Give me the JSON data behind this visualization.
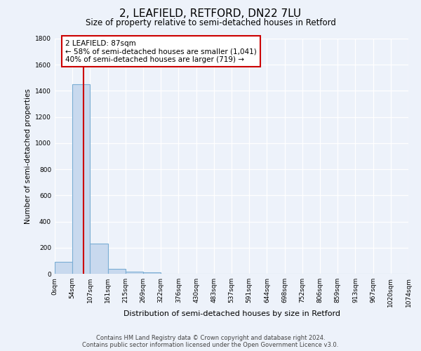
{
  "title": "2, LEAFIELD, RETFORD, DN22 7LU",
  "subtitle": "Size of property relative to semi-detached houses in Retford",
  "xlabel": "Distribution of semi-detached houses by size in Retford",
  "ylabel": "Number of semi-detached properties",
  "bar_values": [
    90,
    1450,
    230,
    40,
    15,
    10,
    0,
    0,
    0,
    0,
    0,
    0,
    0,
    0,
    0,
    0,
    0,
    0,
    0,
    0
  ],
  "bin_labels": [
    "0sqm",
    "54sqm",
    "107sqm",
    "161sqm",
    "215sqm",
    "269sqm",
    "322sqm",
    "376sqm",
    "430sqm",
    "483sqm",
    "537sqm",
    "591sqm",
    "644sqm",
    "698sqm",
    "752sqm",
    "806sqm",
    "859sqm",
    "913sqm",
    "967sqm",
    "1020sqm",
    "1074sqm"
  ],
  "bar_color": "#c8d9ee",
  "bar_edge_color": "#7aadd4",
  "background_color": "#edf2fa",
  "grid_color": "#ffffff",
  "vline_color": "#cc0000",
  "ylim": [
    0,
    1800
  ],
  "yticks": [
    0,
    200,
    400,
    600,
    800,
    1000,
    1200,
    1400,
    1600,
    1800
  ],
  "annotation_text": "2 LEAFIELD: 87sqm\n← 58% of semi-detached houses are smaller (1,041)\n40% of semi-detached houses are larger (719) →",
  "annotation_box_color": "#ffffff",
  "annotation_border_color": "#cc0000",
  "footer_line1": "Contains HM Land Registry data © Crown copyright and database right 2024.",
  "footer_line2": "Contains public sector information licensed under the Open Government Licence v3.0.",
  "title_fontsize": 11,
  "subtitle_fontsize": 8.5,
  "ylabel_fontsize": 7.5,
  "xlabel_fontsize": 8,
  "tick_fontsize": 6.5,
  "footer_fontsize": 6,
  "annot_fontsize": 7.5
}
